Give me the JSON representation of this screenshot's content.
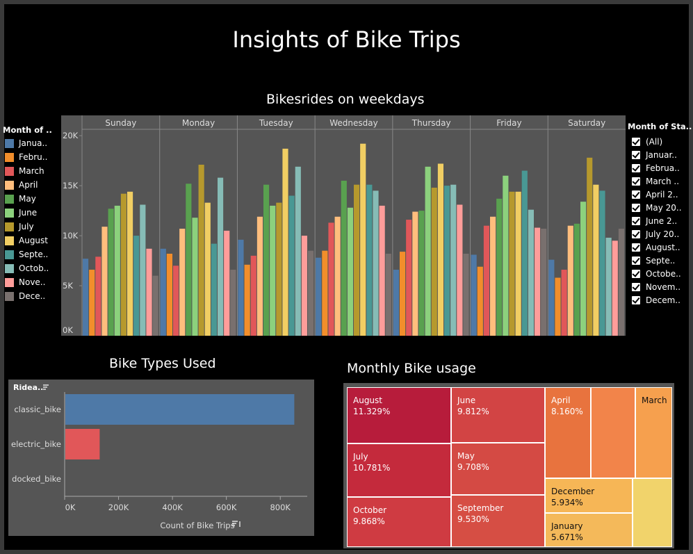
{
  "dashboard": {
    "title": "Insights of Bike Trips",
    "weekday_title": "Bikesrides on weekdays",
    "bike_types_title": "Bike Types Used",
    "monthly_title": "Monthly Bike usage"
  },
  "month_legend": {
    "title": "Month of ..",
    "items": [
      {
        "label": "Janua..",
        "color": "#4e79a7"
      },
      {
        "label": "Febru..",
        "color": "#f28e2b"
      },
      {
        "label": "March",
        "color": "#e15759"
      },
      {
        "label": "April",
        "color": "#ffbe7d"
      },
      {
        "label": "May",
        "color": "#59a14f"
      },
      {
        "label": "June",
        "color": "#8cd17d"
      },
      {
        "label": "July",
        "color": "#b6992d"
      },
      {
        "label": "August",
        "color": "#f1ce63"
      },
      {
        "label": "Septe..",
        "color": "#499894"
      },
      {
        "label": "Octob..",
        "color": "#86bcb6"
      },
      {
        "label": "Nove..",
        "color": "#ff9d9a"
      },
      {
        "label": "Dece..",
        "color": "#79706e"
      }
    ]
  },
  "month_filter": {
    "title": "Month of Sta..",
    "items": [
      "(All)",
      "Januar..",
      "Februa..",
      "March ..",
      "April 2..",
      "May 20..",
      "June 2..",
      "July 20..",
      "August..",
      "Septe..",
      "Octobe..",
      "Novem..",
      "Decem.."
    ]
  },
  "chart_data": [
    {
      "type": "bar",
      "title": "Bikesrides on weekdays",
      "categories": [
        "Sunday",
        "Monday",
        "Tuesday",
        "Wednesday",
        "Thursday",
        "Friday",
        "Saturday"
      ],
      "ylim": [
        0,
        20500
      ],
      "yticks": [
        "0K",
        "5K",
        "10K",
        "15K",
        "20K"
      ],
      "ytick_values": [
        0,
        5000,
        10000,
        15000,
        20000
      ],
      "series": [
        {
          "name": "January",
          "color": "#4e79a7",
          "values": [
            7700,
            8700,
            9600,
            7800,
            6600,
            8100,
            7600
          ]
        },
        {
          "name": "February",
          "color": "#f28e2b",
          "values": [
            6600,
            8200,
            7100,
            8500,
            8400,
            6900,
            5800
          ]
        },
        {
          "name": "March",
          "color": "#e15759",
          "values": [
            7900,
            7000,
            8000,
            11300,
            11600,
            11000,
            6600
          ]
        },
        {
          "name": "April",
          "color": "#ffbe7d",
          "values": [
            10900,
            10700,
            11900,
            11900,
            12400,
            11900,
            11000
          ]
        },
        {
          "name": "May",
          "color": "#59a14f",
          "values": [
            12700,
            15200,
            15100,
            15500,
            12500,
            13700,
            11200
          ]
        },
        {
          "name": "June",
          "color": "#8cd17d",
          "values": [
            13000,
            11800,
            13000,
            12800,
            16900,
            16000,
            13400
          ]
        },
        {
          "name": "July",
          "color": "#b6992d",
          "values": [
            14200,
            17100,
            13300,
            15100,
            14800,
            14400,
            17800
          ]
        },
        {
          "name": "August",
          "color": "#f1ce63",
          "values": [
            14400,
            13300,
            18700,
            19200,
            17200,
            14400,
            15100
          ]
        },
        {
          "name": "September",
          "color": "#499894",
          "values": [
            10000,
            9200,
            14000,
            15100,
            15000,
            16500,
            14500
          ]
        },
        {
          "name": "October",
          "color": "#86bcb6",
          "values": [
            13100,
            15800,
            16900,
            14500,
            15100,
            12600,
            9800
          ]
        },
        {
          "name": "November",
          "color": "#ff9d9a",
          "values": [
            8700,
            10500,
            10000,
            13000,
            13100,
            10800,
            9500
          ]
        },
        {
          "name": "December",
          "color": "#79706e",
          "values": [
            6000,
            6600,
            8500,
            8200,
            8200,
            10700,
            10700
          ]
        }
      ]
    },
    {
      "type": "bar",
      "orientation": "horizontal",
      "title": "Bike Types Used",
      "categories": [
        "classic_bike",
        "electric_bike",
        "docked_bike"
      ],
      "values": [
        852000,
        130000,
        0
      ],
      "colors": [
        "#4e79a7",
        "#e15759",
        "#555555"
      ],
      "ylabel": "Ridea..",
      "xlabel": "Count of Bike Trips",
      "xlim": [
        0,
        900000
      ],
      "xticks": [
        "0K",
        "200K",
        "400K",
        "600K",
        "800K"
      ],
      "xtick_values": [
        0,
        200000,
        400000,
        600000,
        800000
      ]
    },
    {
      "type": "treemap",
      "title": "Monthly Bike usage",
      "cells": [
        {
          "label": "August",
          "value": "11.329%",
          "color": "#b71c3b"
        },
        {
          "label": "July",
          "value": "10.781%",
          "color": "#c42a3c"
        },
        {
          "label": "October",
          "value": "9.868%",
          "color": "#cf3b42"
        },
        {
          "label": "June",
          "value": "9.812%",
          "color": "#d24444"
        },
        {
          "label": "May",
          "value": "9.708%",
          "color": "#d44a44"
        },
        {
          "label": "September",
          "value": "9.530%",
          "color": "#d64e44"
        },
        {
          "label": "April",
          "value": "8.160%",
          "color": "#e8733e"
        },
        {
          "label": "",
          "value": "",
          "color": "#f2844a"
        },
        {
          "label": "March",
          "value": "",
          "color": "#f6a04e"
        },
        {
          "label": "December",
          "value": "5.934%",
          "color": "#f6b656"
        },
        {
          "label": "",
          "value": "",
          "color": "#f4c55c"
        },
        {
          "label": "January",
          "value": "5.671%",
          "color": "#f4b95a"
        },
        {
          "label": "",
          "value": "",
          "color": "#f1d36b"
        }
      ]
    }
  ]
}
